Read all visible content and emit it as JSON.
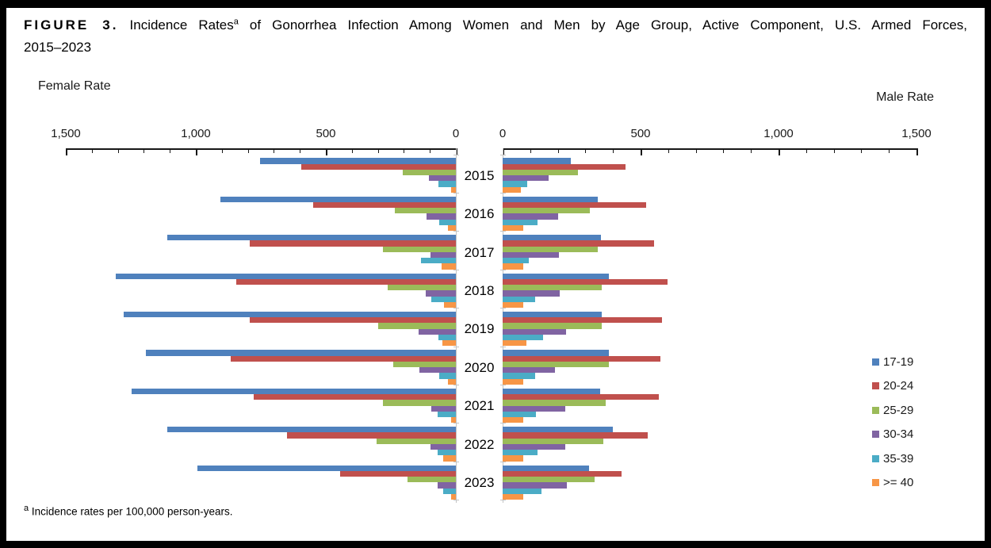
{
  "figure": {
    "label": "FIGURE 3.",
    "title_before_sup": "Incidence Rates",
    "title_sup": "a",
    "title_after_sup": " of Gonorrhea Infection Among Women and Men by Age Group, Active Component, U.S. Armed Forces,",
    "title_line2": "2015–2023",
    "footnote_sup": "a",
    "footnote_text": " Incidence rates per 100,000 person-years."
  },
  "chart_data": {
    "type": "bar",
    "subtype": "bidirectional-population-pyramid",
    "title": "Incidence Rates of Gonorrhea Infection Among Women and Men by Age Group, Active Component, U.S. Armed Forces, 2015–2023",
    "units": "incidence rate per 100,000 person-years",
    "grid": false,
    "legend_position": "right",
    "left_axis": {
      "label": "Female Rate",
      "max": 1500,
      "min": 0,
      "direction": "right-to-left",
      "minor_tick_interval": 100,
      "ticks": [
        {
          "value": 1500,
          "label": "1,500"
        },
        {
          "value": 1000,
          "label": "1,000"
        },
        {
          "value": 500,
          "label": "500"
        },
        {
          "value": 0,
          "label": "0"
        }
      ]
    },
    "right_axis": {
      "label": "Male Rate",
      "max": 1500,
      "min": 0,
      "direction": "left-to-right",
      "minor_tick_interval": 100,
      "ticks": [
        {
          "value": 0,
          "label": "0"
        },
        {
          "value": 500,
          "label": "500"
        },
        {
          "value": 1000,
          "label": "1,000"
        },
        {
          "value": 1500,
          "label": "1,500"
        }
      ]
    },
    "legend": [
      {
        "label": "17-19",
        "color": "#4F81BD"
      },
      {
        "label": "20-24",
        "color": "#C0504D"
      },
      {
        "label": "25-29",
        "color": "#9BBB59"
      },
      {
        "label": "30-34",
        "color": "#8064A2"
      },
      {
        "label": "35-39",
        "color": "#4BACC6"
      },
      {
        "label": ">= 40",
        "color": "#F79646"
      }
    ],
    "years": [
      "2015",
      "2016",
      "2017",
      "2018",
      "2019",
      "2020",
      "2021",
      "2022",
      "2023"
    ],
    "female_series": [
      [
        753,
        595,
        204,
        104,
        66,
        18
      ],
      [
        907,
        549,
        236,
        113,
        64,
        30
      ],
      [
        1111,
        793,
        280,
        97,
        133,
        55
      ],
      [
        1309,
        843,
        262,
        115,
        94,
        45
      ],
      [
        1277,
        793,
        299,
        142,
        67,
        52
      ],
      [
        1192,
        866,
        241,
        141,
        64,
        30
      ],
      [
        1247,
        777,
        280,
        94,
        70,
        18
      ],
      [
        1110,
        649,
        305,
        98,
        70,
        49
      ],
      [
        994,
        445,
        186,
        70,
        49,
        18
      ]
    ],
    "male_series": [
      [
        248,
        446,
        273,
        167,
        89,
        66
      ],
      [
        344,
        521,
        315,
        200,
        127,
        75
      ],
      [
        357,
        550,
        344,
        204,
        95,
        75
      ],
      [
        384,
        597,
        360,
        207,
        117,
        75
      ],
      [
        360,
        577,
        360,
        230,
        147,
        86
      ],
      [
        384,
        571,
        384,
        191,
        117,
        75
      ],
      [
        354,
        567,
        374,
        227,
        121,
        75
      ],
      [
        400,
        527,
        364,
        226,
        127,
        75
      ],
      [
        314,
        432,
        334,
        232,
        141,
        75
      ]
    ]
  }
}
